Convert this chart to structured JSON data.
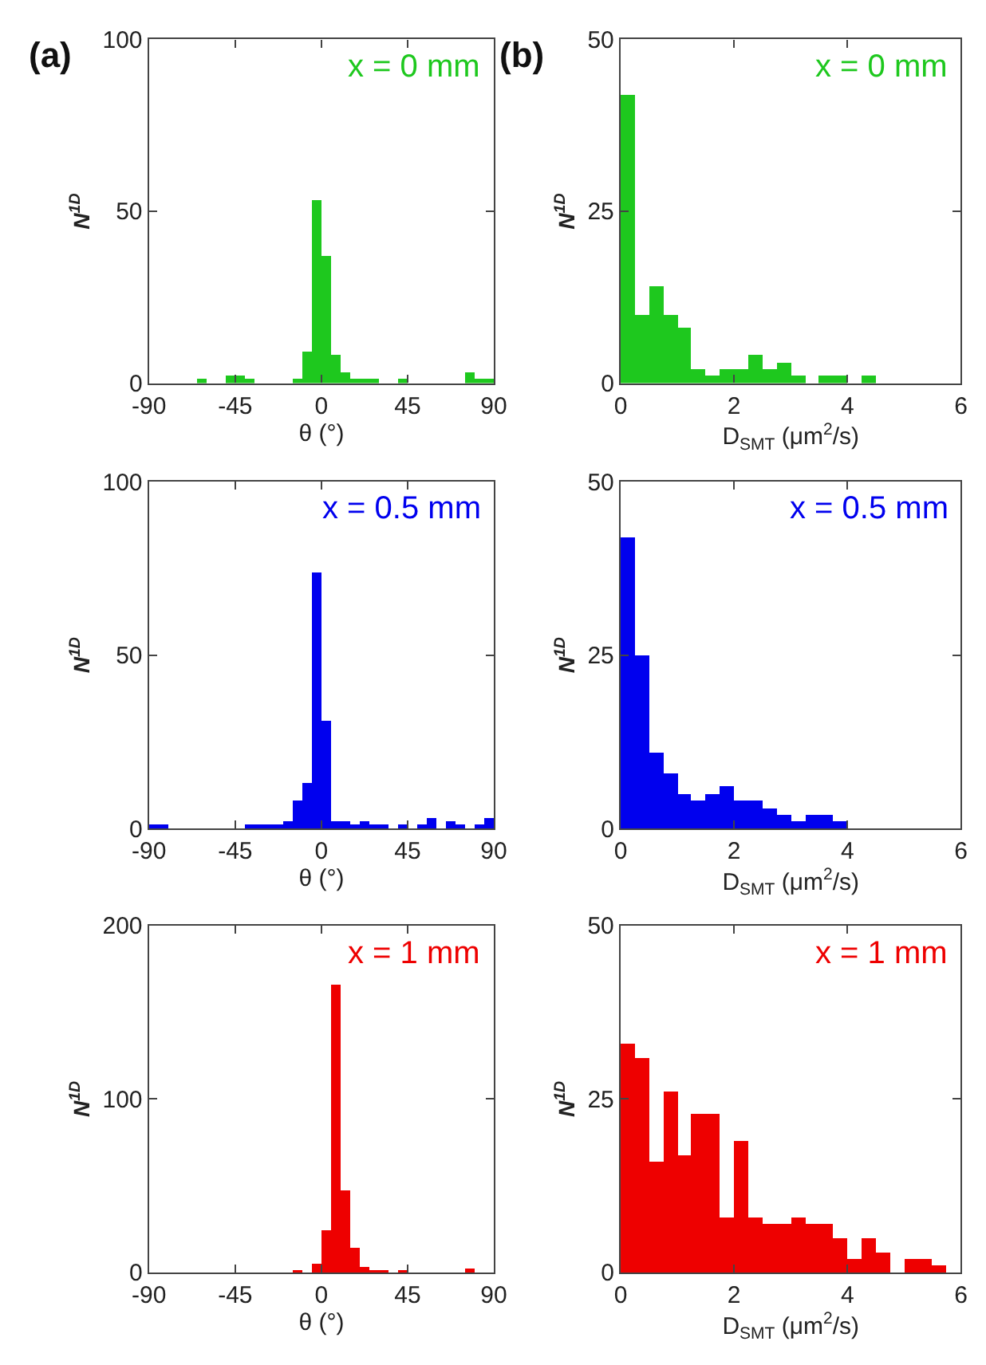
{
  "chart_data": [
    {
      "type": "histogram",
      "title": "(a)",
      "xlabel": "θ (°)",
      "ylabel": "N$^{1D}$",
      "annotations": [
        "x = 0 mm"
      ],
      "bins": [
        -90,
        -85,
        -80,
        -75,
        -70,
        -65,
        -60,
        -55,
        -50,
        -45,
        -40,
        -35,
        -30,
        -25,
        -20,
        -15,
        -10,
        -5,
        0,
        5,
        10,
        15,
        20,
        25,
        30,
        35,
        40,
        45,
        50,
        55,
        60,
        65,
        70,
        75,
        80,
        85,
        90
      ],
      "series": [
        {
          "color": "#1ec81e",
          "values": [
            0,
            0,
            0,
            0,
            0,
            1,
            0,
            0,
            2,
            2,
            1,
            0,
            0,
            0,
            0,
            1,
            9,
            53,
            37,
            8,
            3,
            1,
            1,
            1,
            0,
            0,
            1,
            0,
            0,
            0,
            0,
            0,
            0,
            3,
            1,
            1
          ]
        }
      ],
      "xlim": [
        -90,
        90
      ],
      "xticks": [
        -90,
        -45,
        0,
        45,
        90
      ],
      "ylim": [
        0,
        100
      ],
      "yticks": [
        0,
        50,
        100
      ]
    },
    {
      "type": "histogram",
      "title": "(b)",
      "xlabel": "D$_{SMT}$ (μm$^{2}$/s)",
      "ylabel": "N$^{1D}$",
      "annotations": [
        "x = 0 mm"
      ],
      "bins": [
        0,
        0.25,
        0.5,
        0.75,
        1,
        1.25,
        1.5,
        1.75,
        2,
        2.25,
        2.5,
        2.75,
        3,
        3.25,
        3.5,
        3.75,
        4,
        4.25,
        4.5,
        4.75,
        5,
        5.25,
        5.5,
        5.75,
        6
      ],
      "series": [
        {
          "color": "#1ec81e",
          "values": [
            42,
            10,
            14,
            10,
            8,
            2,
            1,
            2,
            2,
            4,
            2,
            3,
            1,
            0,
            1,
            1,
            0,
            1,
            0,
            0,
            0,
            0,
            0,
            0
          ]
        }
      ],
      "xlim": [
        0,
        6
      ],
      "xticks": [
        0,
        2,
        4,
        6
      ],
      "ylim": [
        0,
        50
      ],
      "yticks": [
        0,
        25,
        50
      ]
    },
    {
      "type": "histogram",
      "xlabel": "θ (°)",
      "ylabel": "N$^{1D}$",
      "annotations": [
        "x = 0.5 mm"
      ],
      "bins": [
        -90,
        -85,
        -80,
        -75,
        -70,
        -65,
        -60,
        -55,
        -50,
        -45,
        -40,
        -35,
        -30,
        -25,
        -20,
        -15,
        -10,
        -5,
        0,
        5,
        10,
        15,
        20,
        25,
        30,
        35,
        40,
        45,
        50,
        55,
        60,
        65,
        70,
        75,
        80,
        85,
        90
      ],
      "series": [
        {
          "color": "#0000ee",
          "values": [
            1,
            1,
            0,
            0,
            0,
            0,
            0,
            0,
            0,
            0,
            1,
            1,
            1,
            1,
            2,
            8,
            13,
            74,
            31,
            2,
            2,
            1,
            2,
            1,
            1,
            0,
            1,
            0,
            1,
            3,
            0,
            2,
            1,
            0,
            1,
            3
          ]
        }
      ],
      "xlim": [
        -90,
        90
      ],
      "xticks": [
        -90,
        -45,
        0,
        45,
        90
      ],
      "ylim": [
        0,
        100
      ],
      "yticks": [
        0,
        50,
        100
      ]
    },
    {
      "type": "histogram",
      "xlabel": "D$_{SMT}$ (μm$^{2}$/s)",
      "ylabel": "N$^{1D}$",
      "annotations": [
        "x = 0.5 mm"
      ],
      "bins": [
        0,
        0.25,
        0.5,
        0.75,
        1,
        1.25,
        1.5,
        1.75,
        2,
        2.25,
        2.5,
        2.75,
        3,
        3.25,
        3.5,
        3.75,
        4,
        4.25,
        4.5,
        4.75,
        5,
        5.25,
        5.5,
        5.75,
        6
      ],
      "series": [
        {
          "color": "#0000ee",
          "values": [
            42,
            25,
            11,
            8,
            5,
            4,
            5,
            6,
            4,
            4,
            3,
            2,
            1,
            2,
            2,
            1,
            0,
            0,
            0,
            0,
            0,
            0,
            0,
            0
          ]
        }
      ],
      "xlim": [
        0,
        6
      ],
      "xticks": [
        0,
        2,
        4,
        6
      ],
      "ylim": [
        0,
        50
      ],
      "yticks": [
        0,
        25,
        50
      ]
    },
    {
      "type": "histogram",
      "xlabel": "θ (°)",
      "ylabel": "N$^{1D}$",
      "annotations": [
        "x = 1 mm"
      ],
      "bins": [
        -90,
        -85,
        -80,
        -75,
        -70,
        -65,
        -60,
        -55,
        -50,
        -45,
        -40,
        -35,
        -30,
        -25,
        -20,
        -15,
        -10,
        -5,
        0,
        5,
        10,
        15,
        20,
        25,
        30,
        35,
        40,
        45,
        50,
        55,
        60,
        65,
        70,
        75,
        80,
        85,
        90
      ],
      "series": [
        {
          "color": "#ee0000",
          "values": [
            0,
            0,
            0,
            0,
            0,
            0,
            0,
            0,
            0,
            0,
            0,
            0,
            0,
            0,
            0,
            1,
            0,
            5,
            24,
            166,
            47,
            14,
            3,
            1,
            1,
            0,
            1,
            0,
            0,
            0,
            0,
            0,
            0,
            2,
            0,
            0
          ]
        }
      ],
      "xlim": [
        -90,
        90
      ],
      "xticks": [
        -90,
        -45,
        0,
        45,
        90
      ],
      "ylim": [
        0,
        200
      ],
      "yticks": [
        0,
        100,
        200
      ]
    },
    {
      "type": "histogram",
      "xlabel": "D$_{SMT}$ (μm$^{2}$/s)",
      "ylabel": "N$^{1D}$",
      "annotations": [
        "x = 1 mm"
      ],
      "bins": [
        0,
        0.25,
        0.5,
        0.75,
        1,
        1.25,
        1.5,
        1.75,
        2,
        2.25,
        2.5,
        2.75,
        3,
        3.25,
        3.5,
        3.75,
        4,
        4.25,
        4.5,
        4.75,
        5,
        5.25,
        5.5,
        5.75,
        6
      ],
      "series": [
        {
          "color": "#ee0000",
          "values": [
            33,
            31,
            16,
            26,
            17,
            23,
            23,
            8,
            19,
            8,
            7,
            7,
            8,
            7,
            7,
            5,
            2,
            5,
            3,
            0,
            2,
            2,
            1,
            0
          ]
        }
      ],
      "xlim": [
        0,
        6
      ],
      "xticks": [
        0,
        2,
        4,
        6
      ],
      "ylim": [
        0,
        50
      ],
      "yticks": [
        0,
        25,
        50
      ]
    }
  ]
}
